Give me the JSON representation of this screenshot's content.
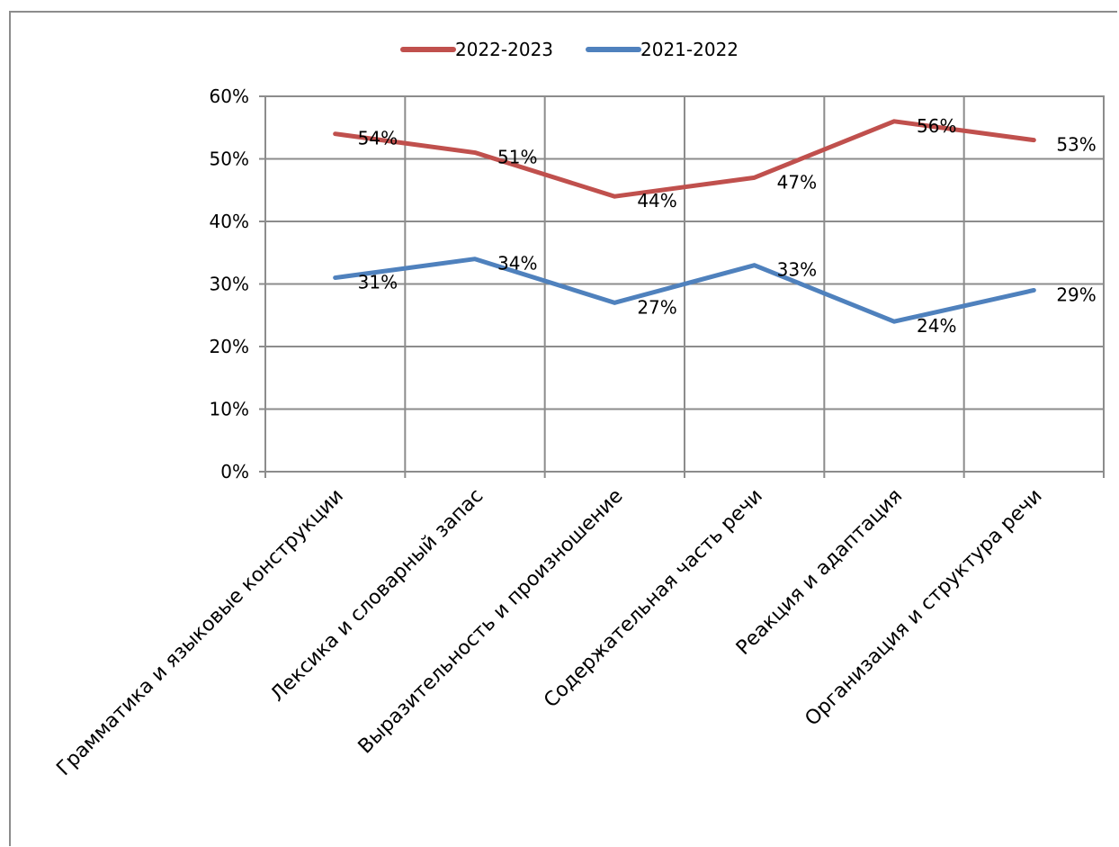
{
  "chart_data": {
    "type": "line",
    "categories": [
      "Грамматика и языковые конструкции",
      "Лексика и словарный запас",
      "Выразительность и произношение",
      "Содержательная часть речи",
      "Реакция и адаптация",
      "Организация и структура речи"
    ],
    "series": [
      {
        "name": "2022-2023",
        "color": "#c0504d",
        "values": [
          54,
          51,
          44,
          47,
          56,
          53
        ],
        "labels": [
          "54%",
          "51%",
          "44%",
          "47%",
          "56%",
          "53%"
        ]
      },
      {
        "name": "2021-2022",
        "color": "#4f81bd",
        "values": [
          31,
          34,
          27,
          33,
          24,
          29
        ],
        "labels": [
          "31%",
          "34%",
          "27%",
          "33%",
          "24%",
          "29%"
        ]
      }
    ],
    "ylim": [
      0,
      60
    ],
    "yticks": [
      0,
      10,
      20,
      30,
      40,
      50,
      60
    ],
    "ytick_labels": [
      "0%",
      "10%",
      "20%",
      "30%",
      "40%",
      "50%",
      "60%"
    ],
    "grid": true,
    "legend_position": "top"
  }
}
